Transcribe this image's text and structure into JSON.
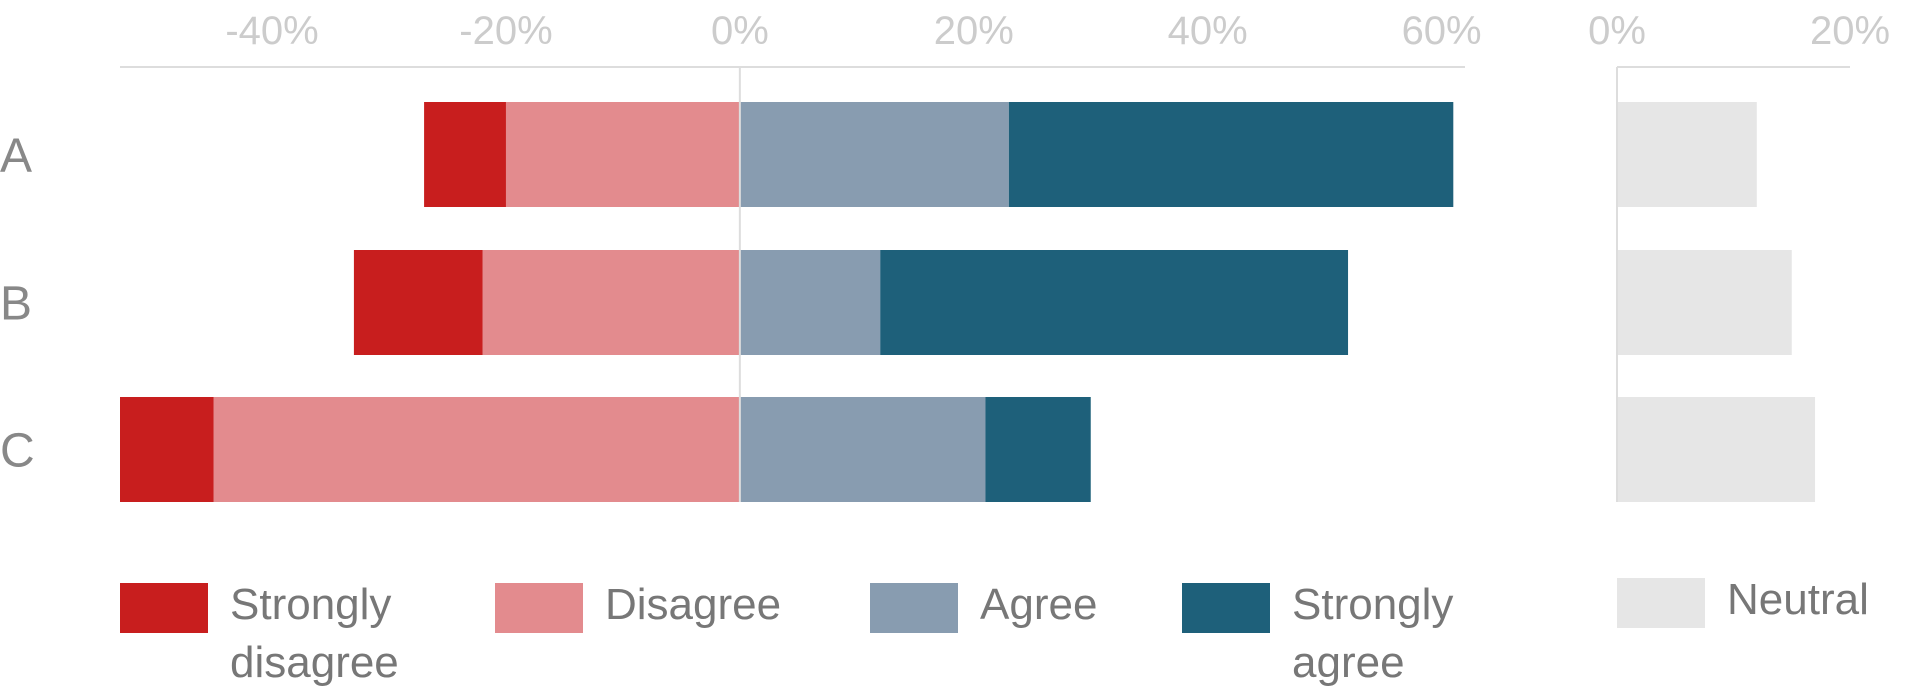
{
  "chart_data": [
    {
      "type": "bar",
      "stacked": true,
      "diverging": true,
      "orientation": "horizontal",
      "categories": [
        "A",
        "B",
        "C"
      ],
      "series": [
        {
          "name": "Strongly disagree",
          "values": [
            -7,
            -11,
            -8
          ]
        },
        {
          "name": "Disagree",
          "values": [
            -20,
            -22,
            -45
          ]
        },
        {
          "name": "Agree",
          "values": [
            23,
            12,
            21
          ]
        },
        {
          "name": "Strongly agree",
          "values": [
            38,
            40,
            9
          ]
        }
      ],
      "xlim": [
        -53,
        62
      ],
      "xticks": [
        -40,
        -20,
        0,
        20,
        40,
        60
      ],
      "xtick_labels": [
        "-40%",
        "-20%",
        "0%",
        "20%",
        "40%",
        "60%"
      ],
      "grid": false,
      "legend": "bottom"
    },
    {
      "type": "bar",
      "orientation": "horizontal",
      "categories": [
        "A",
        "B",
        "C"
      ],
      "series": [
        {
          "name": "Neutral",
          "values": [
            12,
            15,
            17
          ]
        }
      ],
      "xlim": [
        0,
        20
      ],
      "xticks": [
        0,
        20
      ],
      "xtick_labels": [
        "0%",
        "20%"
      ],
      "grid": false,
      "legend": "bottom"
    }
  ],
  "colors": {
    "strongly_disagree": "#c81e1e",
    "disagree": "#e38b8e",
    "agree": "#889cb0",
    "strongly_agree": "#1e607a",
    "neutral": "#e6e6e6",
    "axis": "#dddddd"
  },
  "legend": {
    "strongly_disagree": [
      "Strongly",
      "disagree"
    ],
    "disagree": [
      "Disagree"
    ],
    "agree": [
      "Agree"
    ],
    "strongly_agree": [
      "Strongly",
      "agree"
    ],
    "neutral": [
      "Neutral"
    ]
  }
}
